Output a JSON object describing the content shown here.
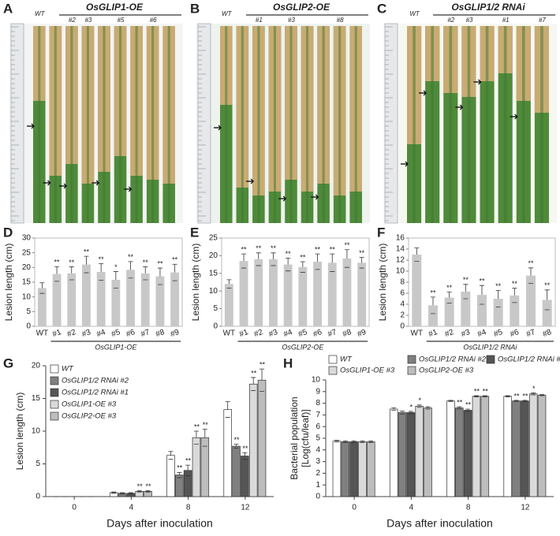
{
  "photos": [
    {
      "panel": "A",
      "title": "OsGLIP1-OE",
      "labels": [
        "WT",
        "#2",
        "#3",
        "#5",
        "#6"
      ]
    },
    {
      "panel": "B",
      "title": "OsGLIP2-OE",
      "labels": [
        "WT",
        "#1",
        "#3",
        "#8"
      ]
    },
    {
      "panel": "C",
      "title": "OsGLIP1/2 RNAi",
      "labels": [
        "WT",
        "#2",
        "#3",
        "#1",
        "#7"
      ]
    }
  ],
  "chart_data": [
    {
      "type": "bar",
      "panel": "D",
      "ylabel": "Lesion length (cm)",
      "group_label": "OsGLIP1-OE",
      "color": "#c8c8c8",
      "categories": [
        "WT",
        "#1",
        "#2",
        "#3",
        "#4",
        "#5",
        "#6",
        "#7",
        "#8",
        "#9"
      ],
      "values": [
        13,
        17.8,
        18,
        21,
        18.5,
        15.8,
        19.2,
        18,
        17,
        18.3
      ],
      "errors": [
        1.8,
        2.5,
        2.2,
        2.8,
        2.8,
        2.8,
        2.8,
        2.2,
        2.8,
        2.8
      ],
      "annotations": [
        null,
        "**",
        "**",
        "**",
        "**",
        "*",
        "**",
        "**",
        "**",
        "**"
      ],
      "ylim": [
        0,
        30
      ],
      "yticks": [
        0,
        5,
        10,
        15,
        20,
        25,
        30
      ]
    },
    {
      "type": "bar",
      "panel": "E",
      "ylabel": "Lesion length (cm)",
      "group_label": "OsGLIP2-OE",
      "color": "#c8c8c8",
      "categories": [
        "WT",
        "#1",
        "#2",
        "#3",
        "#4",
        "#5",
        "#6",
        "#7",
        "#8",
        "#9"
      ],
      "values": [
        12,
        18.5,
        19,
        19,
        17.5,
        16.8,
        18.3,
        18,
        19.2,
        18
      ],
      "errors": [
        1.2,
        2,
        1.8,
        1.8,
        1.8,
        1.5,
        2.2,
        2.5,
        2.5,
        1.5
      ],
      "annotations": [
        null,
        "**",
        "**",
        "**",
        "**",
        "**",
        "**",
        "**",
        "**",
        "**"
      ],
      "ylim": [
        0,
        25
      ],
      "yticks": [
        0,
        5,
        10,
        15,
        20,
        25
      ]
    },
    {
      "type": "bar",
      "panel": "F",
      "ylabel": "Lesion length (cm)",
      "group_label": "OsGLIP1/2 RNAi",
      "color": "#c8c8c8",
      "categories": [
        "WT",
        "#1",
        "#2",
        "#3",
        "#4",
        "#5",
        "#6",
        "#7",
        "#8"
      ],
      "values": [
        13,
        3.8,
        5.2,
        6.3,
        5.7,
        5,
        5.6,
        9.2,
        4.8
      ],
      "errors": [
        1.2,
        1.5,
        1,
        1.3,
        1.7,
        1.5,
        1.3,
        1.4,
        1.8
      ],
      "annotations": [
        null,
        "**",
        "**",
        "**",
        "**",
        "**",
        "**",
        "**",
        "**"
      ],
      "ylim": [
        0,
        16
      ],
      "yticks": [
        0,
        2,
        4,
        6,
        8,
        10,
        12,
        14,
        16
      ]
    },
    {
      "type": "grouped_bar",
      "panel": "G",
      "ylabel": "Lesion length (cm)",
      "xlabel": "Days after inoculation",
      "categories": [
        "0",
        "4",
        "8",
        "12"
      ],
      "ylim": [
        0,
        20
      ],
      "yticks": [
        0,
        5,
        10,
        15,
        20
      ],
      "series": [
        {
          "name": "WT",
          "color": "#ffffff",
          "values": [
            0,
            0.6,
            6.3,
            13.3
          ],
          "errors": [
            0,
            0.1,
            0.6,
            1.2
          ],
          "annotations": [
            null,
            null,
            null,
            null
          ]
        },
        {
          "name": "OsGLIP1/2 RNAi #2",
          "color": "#808080",
          "values": [
            0,
            0.5,
            3.3,
            7.7
          ],
          "errors": [
            0,
            0.1,
            0.4,
            0.3
          ],
          "annotations": [
            null,
            null,
            "**",
            "**"
          ]
        },
        {
          "name": "OsGLIP1/2 RNAi #1",
          "color": "#555555",
          "values": [
            0,
            0.5,
            4,
            6.2
          ],
          "errors": [
            0,
            0.1,
            0.8,
            0.5
          ],
          "annotations": [
            null,
            null,
            "**",
            "**"
          ]
        },
        {
          "name": "OsGLIP1-OE #3",
          "color": "#dadada",
          "values": [
            0,
            0.8,
            9,
            17.2
          ],
          "errors": [
            0,
            0.1,
            1,
            1
          ],
          "annotations": [
            null,
            "**",
            "**",
            "**"
          ]
        },
        {
          "name": "OsGLIP2-OE #3",
          "color": "#bdbdbd",
          "values": [
            0,
            0.8,
            9,
            17.8
          ],
          "errors": [
            0,
            0.1,
            1.3,
            1.7
          ],
          "annotations": [
            null,
            "**",
            "**",
            "**"
          ]
        }
      ]
    },
    {
      "type": "grouped_bar",
      "panel": "H",
      "ylabel": [
        "Bacterial population",
        "[Log(cfu/leaf)]"
      ],
      "xlabel": "Days after inoculation",
      "categories": [
        "0",
        "4",
        "8",
        "12"
      ],
      "ylim": [
        0,
        10
      ],
      "yticks": [
        0,
        1,
        2,
        3,
        4,
        5,
        6,
        7,
        8,
        9,
        10
      ],
      "series": [
        {
          "name": "WT",
          "color": "#ffffff",
          "values": [
            4.75,
            7.5,
            8.2,
            8.6
          ],
          "errors": [
            0.08,
            0.12,
            0.05,
            0.05
          ],
          "annotations": [
            null,
            null,
            null,
            null
          ]
        },
        {
          "name": "OsGLIP1/2 RNAi #2",
          "color": "#808080",
          "values": [
            4.7,
            7.2,
            7.6,
            8.2
          ],
          "errors": [
            0.08,
            0.12,
            0.1,
            0.05
          ],
          "annotations": [
            null,
            null,
            "**",
            "**"
          ]
        },
        {
          "name": "OsGLIP1/2 RNAi #1",
          "color": "#555555",
          "values": [
            4.7,
            7.2,
            7.4,
            8.2
          ],
          "errors": [
            0.08,
            0.1,
            0.1,
            0.05
          ],
          "annotations": [
            null,
            "*",
            "**",
            "**"
          ]
        },
        {
          "name": "OsGLIP1-OE #3",
          "color": "#dadada",
          "values": [
            4.7,
            7.75,
            8.6,
            8.8
          ],
          "errors": [
            0.08,
            0.1,
            0.05,
            0.08
          ],
          "annotations": [
            null,
            "*",
            "**",
            "*"
          ]
        },
        {
          "name": "OsGLIP2-OE #3",
          "color": "#bdbdbd",
          "values": [
            4.7,
            7.6,
            8.6,
            8.7
          ],
          "errors": [
            0.08,
            0.1,
            0.05,
            0.05
          ],
          "annotations": [
            null,
            null,
            "**",
            null
          ]
        }
      ]
    }
  ]
}
